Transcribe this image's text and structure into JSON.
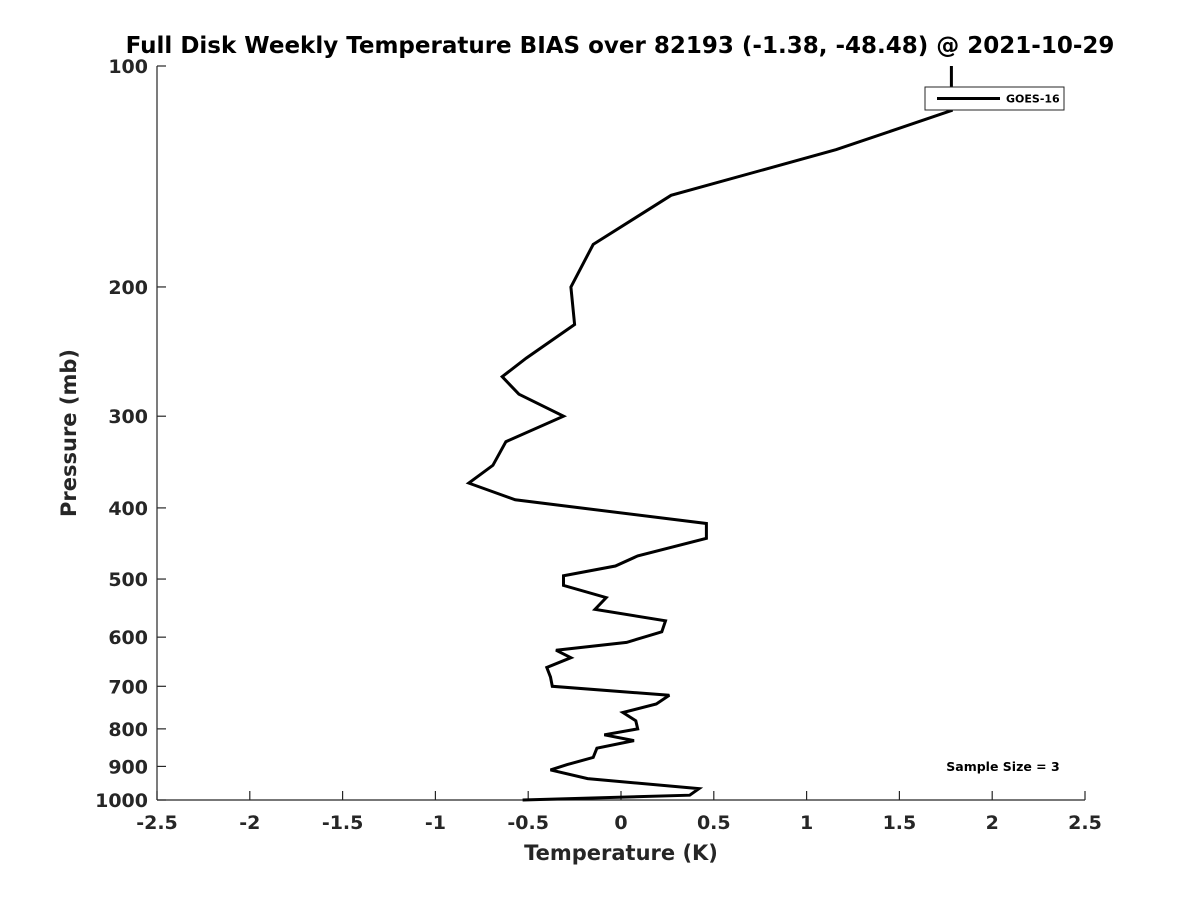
{
  "chart_data": {
    "type": "line",
    "title": "Full Disk Weekly Temperature BIAS over 82193 (-1.38, -48.48) @ 2021-10-29",
    "xlabel": "Temperature (K)",
    "ylabel": "Pressure (mb)",
    "xlim": [
      -2.5,
      2.5
    ],
    "ylim": [
      100,
      1000
    ],
    "yscale": "log",
    "y_reversed": true,
    "grid": false,
    "xticks": [
      -2.5,
      -2,
      -1.5,
      -1,
      -0.5,
      0,
      0.5,
      1,
      1.5,
      2,
      2.5
    ],
    "xtick_labels": [
      "-2.5",
      "-2",
      "-1.5",
      "-1",
      "-0.5",
      "0",
      "0.5",
      "1",
      "1.5",
      "2",
      "2.5"
    ],
    "yticks": [
      100,
      200,
      300,
      400,
      500,
      600,
      700,
      800,
      900,
      1000
    ],
    "ytick_labels": [
      "100",
      "200",
      "300",
      "400",
      "500",
      "600",
      "700",
      "800",
      "900",
      "1000"
    ],
    "legend_position": "top-right",
    "series": [
      {
        "name": "GOES-16",
        "color": "#000000",
        "points": [
          [
            1.78,
            100
          ],
          [
            1.78,
            115
          ],
          [
            1.16,
            130
          ],
          [
            0.27,
            150
          ],
          [
            -0.15,
            175
          ],
          [
            -0.27,
            200
          ],
          [
            -0.25,
            225
          ],
          [
            -0.51,
            250
          ],
          [
            -0.64,
            265
          ],
          [
            -0.55,
            280
          ],
          [
            -0.31,
            300
          ],
          [
            -0.62,
            325
          ],
          [
            -0.69,
            350
          ],
          [
            -0.82,
            370
          ],
          [
            -0.57,
            390
          ],
          [
            0.46,
            420
          ],
          [
            0.46,
            440
          ],
          [
            0.09,
            465
          ],
          [
            -0.03,
            480
          ],
          [
            -0.31,
            495
          ],
          [
            -0.31,
            510
          ],
          [
            -0.08,
            530
          ],
          [
            -0.14,
            550
          ],
          [
            0.24,
            570
          ],
          [
            0.22,
            590
          ],
          [
            0.03,
            610
          ],
          [
            -0.35,
            625
          ],
          [
            -0.27,
            640
          ],
          [
            -0.4,
            660
          ],
          [
            -0.38,
            680
          ],
          [
            -0.37,
            700
          ],
          [
            0.26,
            720
          ],
          [
            0.19,
            740
          ],
          [
            0.01,
            760
          ],
          [
            0.08,
            780
          ],
          [
            0.09,
            800
          ],
          [
            -0.09,
            815
          ],
          [
            0.07,
            830
          ],
          [
            -0.13,
            850
          ],
          [
            -0.15,
            875
          ],
          [
            -0.29,
            895
          ],
          [
            -0.38,
            910
          ],
          [
            -0.18,
            935
          ],
          [
            0.42,
            965
          ],
          [
            0.37,
            985
          ],
          [
            -0.53,
            1000
          ]
        ]
      }
    ],
    "annotations": [
      "Sample Size = 3"
    ]
  }
}
